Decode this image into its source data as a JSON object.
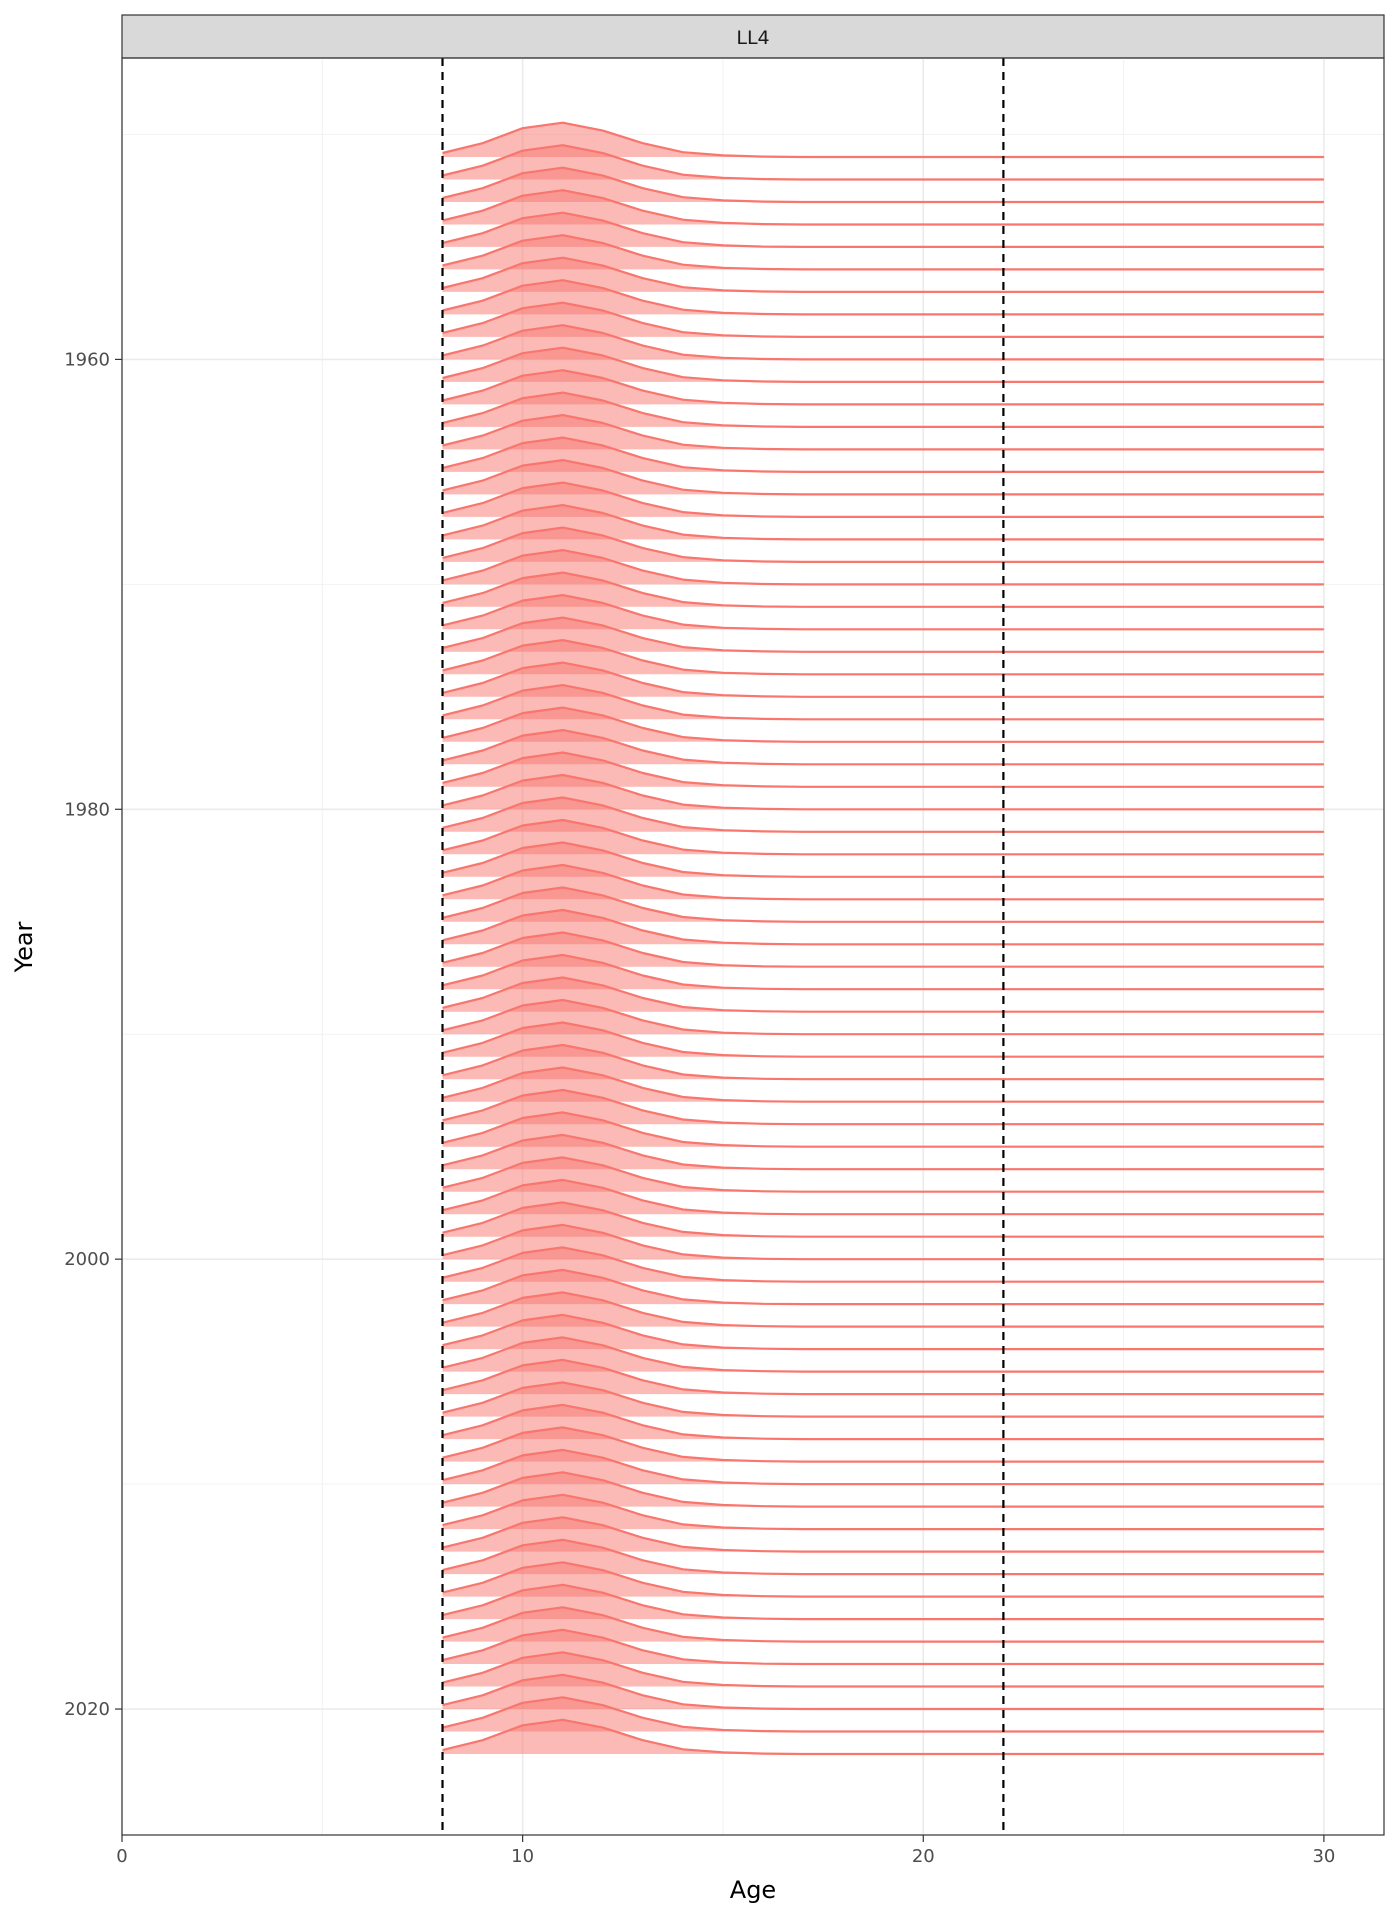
{
  "chart_data": {
    "type": "area",
    "facet_label": "LL4",
    "xlabel": "Age",
    "ylabel": "Year",
    "xlim": [
      0,
      31.5
    ],
    "ylim": [
      1946.6,
      2025.6
    ],
    "x_ticks": [
      0,
      10,
      20,
      30
    ],
    "y_ticks": [
      1960,
      1980,
      2000,
      2020
    ],
    "grid": true,
    "reference_lines": [
      8,
      22
    ],
    "series_color": "#F8766D",
    "year_start": 1951,
    "year_end": 2022,
    "ridge_height_years": 1.75,
    "ages": [
      8,
      9,
      10,
      11,
      12,
      13,
      14,
      15,
      16,
      17,
      18,
      19,
      20,
      21,
      22,
      23,
      24,
      25,
      26,
      27,
      28,
      29,
      30
    ],
    "relative_density": [
      0.1,
      0.35,
      0.73,
      0.87,
      0.67,
      0.35,
      0.12,
      0.04,
      0.01,
      0,
      0,
      0,
      0,
      0,
      0,
      0,
      0,
      0,
      0,
      0,
      0,
      0,
      0
    ]
  }
}
